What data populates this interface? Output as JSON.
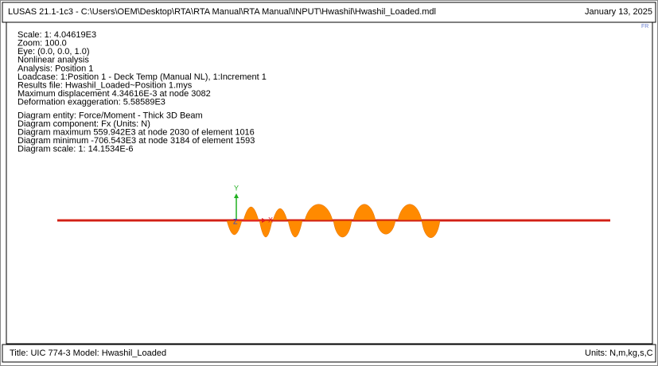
{
  "header": {
    "title": "LUSAS 21.1-1c3 - C:\\Users\\OEM\\Desktop\\RTA\\RTA Manual\\RTA Manual\\INPUT\\Hwashil\\Hwashil_Loaded.mdl",
    "date": "January 13, 2025"
  },
  "corner_label": "FR",
  "info": {
    "lines": [
      "Scale: 1: 4.04619E3",
      "Zoom: 100.0",
      "Eye: (0.0, 0.0, 1.0)",
      "Nonlinear analysis",
      "Analysis: Position 1",
      "Loadcase: 1:Position 1 - Deck Temp (Manual NL), 1:Increment 1",
      "Results file: Hwashil_Loaded~Position 1.mys",
      "Maximum displacement 4.34616E-3 at node 3082",
      "Deformation exaggeration: 5.58589E3"
    ]
  },
  "diagram": {
    "lines": [
      "Diagram entity: Force/Moment - Thick 3D Beam",
      "Diagram component: Fx (Units: N)",
      "Diagram maximum 559.942E3 at node 2030 of element 1016",
      "Diagram minimum -706.543E3 at node 3184 of element 1593",
      "Diagram scale: 1: 14.1534E-6"
    ]
  },
  "axes": {
    "y": "Y",
    "z": "Z",
    "x": "X"
  },
  "footer": {
    "title": "Title: UIC 774-3 Model: Hwashil_Loaded",
    "units": "Units: N,m,kg,s,C"
  }
}
